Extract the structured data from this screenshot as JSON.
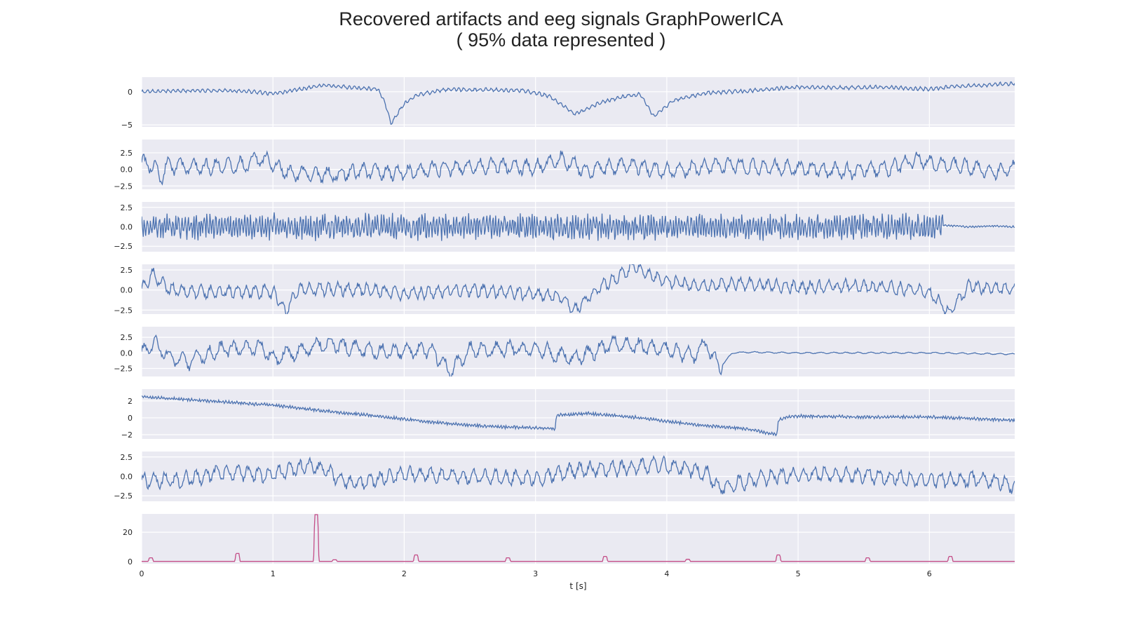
{
  "chart_data": {
    "type": "line",
    "title": "Recovered artifacts and eeg signals GraphPowerICA",
    "subtitle": "( 95% data represented )",
    "xlabel": "t [s]",
    "xlim": [
      0,
      6.65
    ],
    "x_ticks": [
      "0",
      "1",
      "2",
      "3",
      "4",
      "5",
      "6"
    ],
    "x_tick_values": [
      0,
      1,
      2,
      3,
      4,
      5,
      6
    ],
    "background": "#eaeaf2",
    "grid": true,
    "panels": [
      {
        "ylim": [
          -5.3,
          2.2
        ],
        "y_ticks": [
          {
            "v": 0,
            "label": "0"
          },
          {
            "v": -5,
            "label": "−5"
          }
        ],
        "color": "#4c72b0",
        "series": [
          [
            0,
            0
          ],
          [
            0.2,
            0.1
          ],
          [
            0.5,
            0.2
          ],
          [
            0.8,
            0.1
          ],
          [
            1.0,
            -0.3
          ],
          [
            1.2,
            0.4
          ],
          [
            1.4,
            1.0
          ],
          [
            1.6,
            0.6
          ],
          [
            1.8,
            0.4
          ],
          [
            1.85,
            -1.5
          ],
          [
            1.9,
            -4.8
          ],
          [
            2.0,
            -1.8
          ],
          [
            2.1,
            -0.5
          ],
          [
            2.3,
            0.3
          ],
          [
            2.6,
            0.3
          ],
          [
            2.9,
            0.2
          ],
          [
            3.1,
            -0.6
          ],
          [
            3.3,
            -3.3
          ],
          [
            3.4,
            -2.5
          ],
          [
            3.5,
            -1.6
          ],
          [
            3.7,
            -0.6
          ],
          [
            3.8,
            -0.4
          ],
          [
            3.9,
            -3.7
          ],
          [
            4.05,
            -1.3
          ],
          [
            4.3,
            -0.2
          ],
          [
            4.6,
            0.1
          ],
          [
            5.0,
            0.7
          ],
          [
            5.4,
            0.6
          ],
          [
            5.6,
            0.7
          ],
          [
            6.0,
            0.4
          ],
          [
            6.2,
            0.8
          ],
          [
            6.5,
            1.1
          ],
          [
            6.65,
            1.2
          ]
        ],
        "noise": 0.3,
        "noise_period": 0.04
      },
      {
        "ylim": [
          -3.0,
          4.5
        ],
        "y_ticks": [
          {
            "v": 2.5,
            "label": "2.5"
          },
          {
            "v": 0.0,
            "label": "0.0"
          },
          {
            "v": -2.5,
            "label": "−2.5"
          }
        ],
        "color": "#4c72b0",
        "series": [
          [
            0,
            1
          ],
          [
            0.1,
            0.5
          ],
          [
            0.15,
            -1.5
          ],
          [
            0.2,
            0.5
          ],
          [
            0.5,
            0.3
          ],
          [
            0.8,
            0.7
          ],
          [
            0.9,
            1.8
          ],
          [
            1.0,
            1.0
          ],
          [
            1.1,
            -0.5
          ],
          [
            1.4,
            -0.8
          ],
          [
            1.7,
            -0.2
          ],
          [
            2.0,
            -0.5
          ],
          [
            2.3,
            0.2
          ],
          [
            2.7,
            0.6
          ],
          [
            3.0,
            0.3
          ],
          [
            3.2,
            1.6
          ],
          [
            3.4,
            -0.3
          ],
          [
            3.7,
            0.8
          ],
          [
            4.0,
            -0.3
          ],
          [
            4.4,
            0.6
          ],
          [
            4.7,
            0.4
          ],
          [
            5.0,
            0.1
          ],
          [
            5.4,
            -0.3
          ],
          [
            5.7,
            0.2
          ],
          [
            5.9,
            1.5
          ],
          [
            6.1,
            0.7
          ],
          [
            6.3,
            0.4
          ],
          [
            6.5,
            -0.4
          ],
          [
            6.65,
            0.1
          ]
        ],
        "noise": 1.3,
        "noise_period": 0.09
      },
      {
        "ylim": [
          -3.2,
          3.2
        ],
        "y_ticks": [
          {
            "v": 2.5,
            "label": "2.5"
          },
          {
            "v": 0.0,
            "label": "0.0"
          },
          {
            "v": -2.5,
            "label": "−2.5"
          }
        ],
        "color": "#4c72b0",
        "series": [
          [
            0,
            0
          ],
          [
            6.05,
            0
          ],
          [
            6.1,
            0.2
          ],
          [
            6.3,
            0.0
          ],
          [
            6.5,
            0.1
          ],
          [
            6.65,
            0.0
          ]
        ],
        "noise": 1.7,
        "noise_period": 0.022,
        "quiet_after": 6.1,
        "quiet_noise": 0.12
      },
      {
        "ylim": [
          -3.0,
          3.2
        ],
        "y_ticks": [
          {
            "v": 2.5,
            "label": "2.5"
          },
          {
            "v": 0.0,
            "label": "0.0"
          },
          {
            "v": -2.5,
            "label": "−2.5"
          }
        ],
        "color": "#4c72b0",
        "series": [
          [
            0,
            0
          ],
          [
            0.08,
            2.0
          ],
          [
            0.2,
            0.2
          ],
          [
            0.4,
            -0.2
          ],
          [
            1.0,
            -0.2
          ],
          [
            1.1,
            -2.6
          ],
          [
            1.2,
            0.2
          ],
          [
            1.8,
            0.0
          ],
          [
            2.0,
            -0.5
          ],
          [
            2.5,
            0.0
          ],
          [
            3.0,
            -0.5
          ],
          [
            3.2,
            -0.8
          ],
          [
            3.3,
            -2.6
          ],
          [
            3.5,
            0.5
          ],
          [
            3.6,
            1.2
          ],
          [
            3.75,
            3.0
          ],
          [
            3.9,
            1.5
          ],
          [
            4.2,
            0.5
          ],
          [
            4.6,
            0.8
          ],
          [
            5.0,
            0.3
          ],
          [
            5.4,
            0.5
          ],
          [
            5.8,
            0.2
          ],
          [
            6.0,
            -0.3
          ],
          [
            6.15,
            -2.8
          ],
          [
            6.3,
            0.5
          ],
          [
            6.65,
            0
          ]
        ],
        "noise": 0.9,
        "noise_period": 0.07
      },
      {
        "ylim": [
          -3.8,
          4.2
        ],
        "y_ticks": [
          {
            "v": 2.5,
            "label": "2.5"
          },
          {
            "v": 0.0,
            "label": "0.0"
          },
          {
            "v": -2.5,
            "label": "−2.5"
          }
        ],
        "color": "#4c72b0",
        "series": [
          [
            0,
            0
          ],
          [
            0.1,
            1.5
          ],
          [
            0.2,
            -0.5
          ],
          [
            0.35,
            -1.5
          ],
          [
            0.6,
            0.5
          ],
          [
            0.9,
            1.0
          ],
          [
            1.0,
            -1.0
          ],
          [
            1.4,
            1.5
          ],
          [
            1.8,
            0.2
          ],
          [
            2.2,
            0.5
          ],
          [
            2.35,
            -3.0
          ],
          [
            2.5,
            0.5
          ],
          [
            3.0,
            0.8
          ],
          [
            3.3,
            -1.0
          ],
          [
            3.6,
            1.5
          ],
          [
            4.0,
            0.5
          ],
          [
            4.2,
            -0.5
          ],
          [
            4.3,
            1.5
          ],
          [
            4.4,
            -2.5
          ],
          [
            4.5,
            0.0
          ],
          [
            4.6,
            0.1
          ],
          [
            5.0,
            0.0
          ],
          [
            5.5,
            0.0
          ],
          [
            6.0,
            0.0
          ],
          [
            6.65,
            -0.2
          ]
        ],
        "noise": 1.4,
        "noise_period": 0.1,
        "quiet_after": 4.42,
        "quiet_noise": 0.12
      },
      {
        "ylim": [
          -2.5,
          3.4
        ],
        "y_ticks": [
          {
            "v": 2,
            "label": "2"
          },
          {
            "v": 0,
            "label": "0"
          },
          {
            "v": -2,
            "label": "−2"
          }
        ],
        "color": "#4c72b0",
        "series": [
          [
            0,
            2.5
          ],
          [
            0.3,
            2.2
          ],
          [
            0.6,
            1.9
          ],
          [
            1.0,
            1.5
          ],
          [
            1.4,
            0.8
          ],
          [
            1.8,
            0.2
          ],
          [
            2.2,
            -0.5
          ],
          [
            2.6,
            -1.0
          ],
          [
            3.0,
            -1.2
          ],
          [
            3.15,
            -1.3
          ],
          [
            3.16,
            0.3
          ],
          [
            3.4,
            0.5
          ],
          [
            3.8,
            0.0
          ],
          [
            4.2,
            -0.8
          ],
          [
            4.6,
            -1.3
          ],
          [
            4.84,
            -2.0
          ],
          [
            4.85,
            -0.2
          ],
          [
            4.95,
            0.2
          ],
          [
            5.5,
            0.1
          ],
          [
            6.0,
            0.1
          ],
          [
            6.65,
            -0.3
          ]
        ],
        "noise": 0.2,
        "noise_period": 0.02
      },
      {
        "ylim": [
          -3.2,
          3.2
        ],
        "y_ticks": [
          {
            "v": 2.5,
            "label": "2.5"
          },
          {
            "v": 0.0,
            "label": "0.0"
          },
          {
            "v": -2.5,
            "label": "−2.5"
          }
        ],
        "color": "#4c72b0",
        "series": [
          [
            0,
            -0.5
          ],
          [
            0.3,
            -0.5
          ],
          [
            0.6,
            0.5
          ],
          [
            1.0,
            0.2
          ],
          [
            1.3,
            1.5
          ],
          [
            1.6,
            -1.0
          ],
          [
            2.0,
            0.3
          ],
          [
            2.4,
            0.0
          ],
          [
            3.0,
            -0.3
          ],
          [
            3.3,
            0.8
          ],
          [
            3.6,
            1.0
          ],
          [
            4.0,
            1.5
          ],
          [
            4.3,
            0.5
          ],
          [
            4.4,
            -1.5
          ],
          [
            4.8,
            0.0
          ],
          [
            5.2,
            0.3
          ],
          [
            5.6,
            0.0
          ],
          [
            6.0,
            -0.5
          ],
          [
            6.4,
            -0.3
          ],
          [
            6.65,
            -1.2
          ]
        ],
        "noise": 1.1,
        "noise_period": 0.08
      },
      {
        "ylim": [
          -1.5,
          32.5
        ],
        "y_ticks": [
          {
            "v": 20,
            "label": "20"
          },
          {
            "v": 0,
            "label": "0"
          }
        ],
        "color": "#c44e88",
        "baseline": 0.1,
        "spikes": [
          {
            "t": 0.07,
            "h": 2.5
          },
          {
            "t": 0.73,
            "h": 5.5
          },
          {
            "t": 1.33,
            "h": 32.0
          },
          {
            "t": 1.47,
            "h": 1.2
          },
          {
            "t": 2.09,
            "h": 4.5
          },
          {
            "t": 2.79,
            "h": 2.5
          },
          {
            "t": 3.53,
            "h": 3.5
          },
          {
            "t": 4.16,
            "h": 1.5
          },
          {
            "t": 4.85,
            "h": 4.5
          },
          {
            "t": 5.53,
            "h": 2.5
          },
          {
            "t": 6.16,
            "h": 3.5
          }
        ]
      }
    ]
  }
}
